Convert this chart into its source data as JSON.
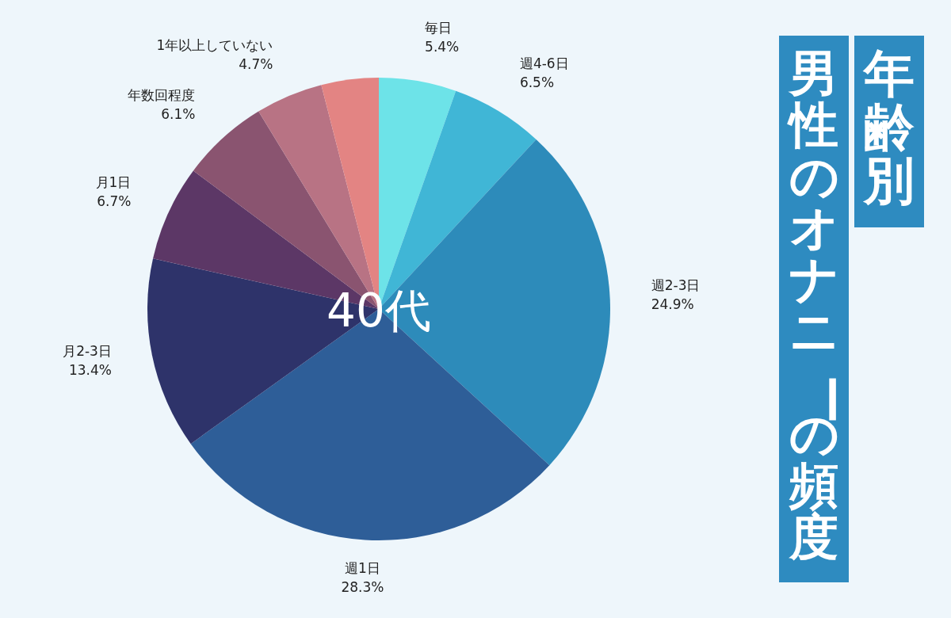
{
  "chart_data": {
    "type": "pie",
    "title": "男性のオナニーの頻度",
    "subtitle": "年齢別",
    "annotations": [
      "40代"
    ],
    "categories": [
      "毎日",
      "週4-6日",
      "週2-3日",
      "週1日",
      "月2-3日",
      "月1日",
      "年数回程度",
      "1年以上していない",
      null
    ],
    "values": [
      5.4,
      6.5,
      24.9,
      28.3,
      13.4,
      6.7,
      6.1,
      4.7,
      4.0
    ],
    "colors": [
      "#6de3e8",
      "#40b6d6",
      "#2d8bba",
      "#2e5e98",
      "#2e336a",
      "#5c3766",
      "#8a5470",
      "#b87384",
      "#e38483"
    ],
    "value_labels": [
      "5.4%",
      "6.5%",
      "24.9%",
      "28.3%",
      "13.4%",
      "6.7%",
      "6.1%",
      "4.7%",
      null
    ]
  }
}
